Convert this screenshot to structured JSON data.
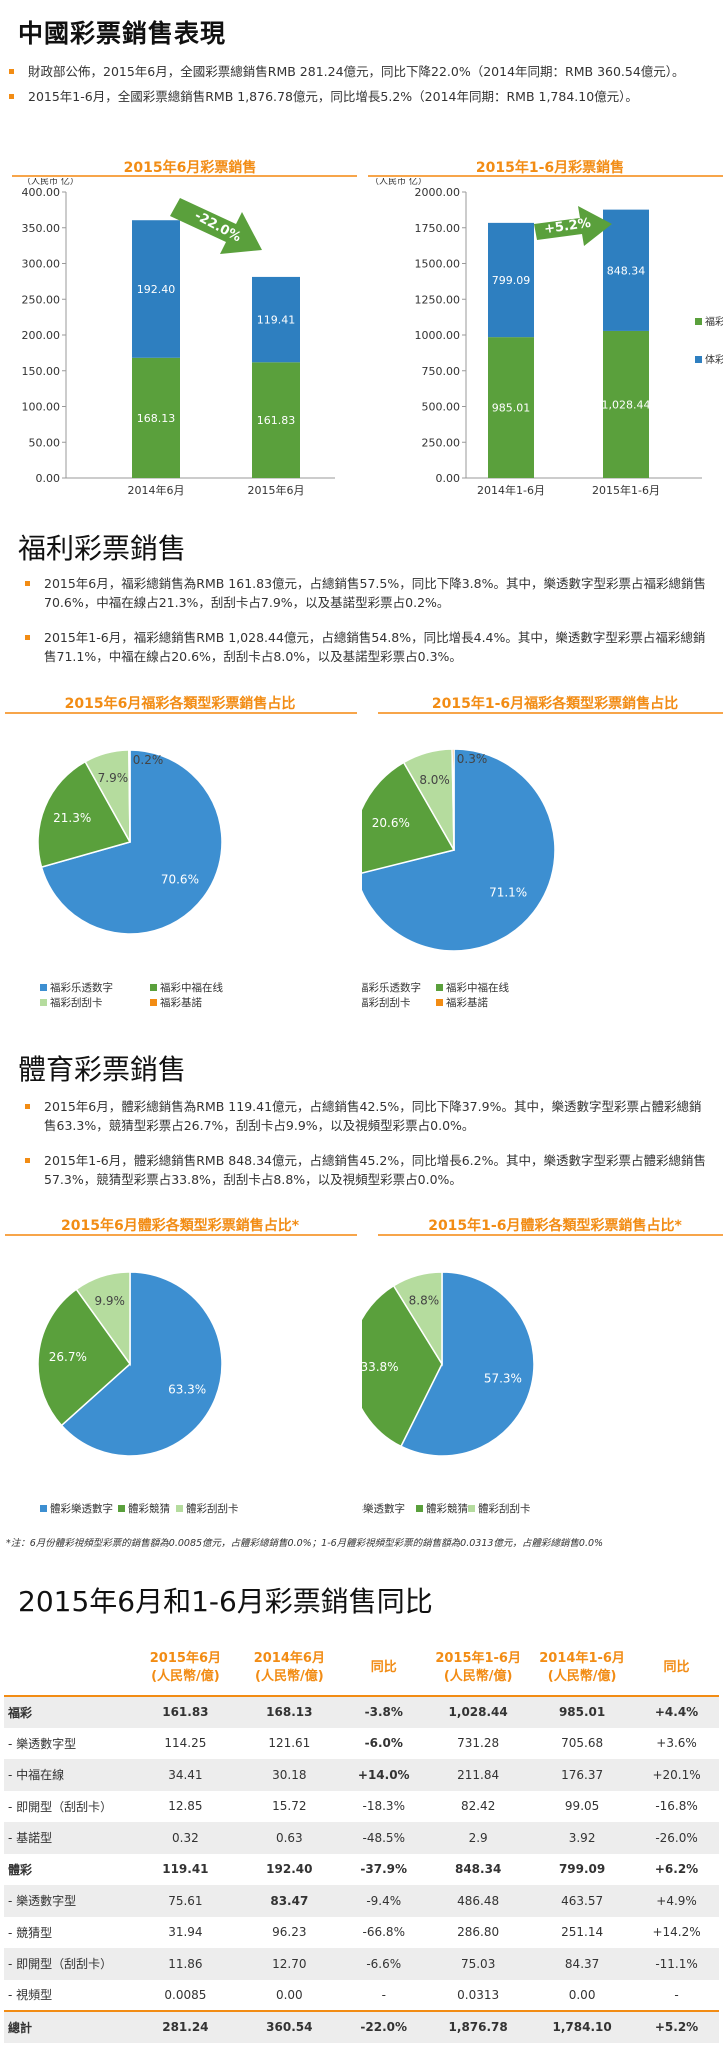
{
  "section1": {
    "title": "中國彩票銷售表現",
    "bullets": [
      "財政部公佈，2015年6月，全國彩票總銷售RMB 281.24億元，同比下降22.0%（2014年同期：RMB 360.54億元）。",
      "2015年1-6月，全國彩票總銷售RMB 1,876.78億元，同比增長5.2%（2014年同期：RMB 1,784.10億元）。"
    ]
  },
  "section2": {
    "title": "福利彩票銷售",
    "bullets": [
      "2015年6月，福彩總銷售為RMB 161.83億元，占總銷售57.5%，同比下降3.8%。其中，樂透數字型彩票占福彩總銷售70.6%，中福在線占21.3%，刮刮卡占7.9%，以及基諾型彩票占0.2%。",
      "2015年1-6月，福彩總銷售RMB 1,028.44億元，占總銷售54.8%，同比增長4.4%。其中，樂透數字型彩票占福彩總銷售71.1%，中福在線占20.6%，刮刮卡占8.0%，以及基諾型彩票占0.3%。"
    ]
  },
  "section3": {
    "title": "體育彩票銷售",
    "bullets": [
      "2015年6月，體彩總銷售為RMB 119.41億元，占總銷售42.5%，同比下降37.9%。其中，樂透數字型彩票占體彩總銷售63.3%，競猜型彩票占26.7%，刮刮卡占9.9%，以及視頻型彩票占0.0%。",
      "2015年1-6月，體彩總銷售RMB 848.34億元，占總銷售45.2%，同比增長6.2%。其中，樂透數字型彩票占體彩總銷售57.3%，競猜型彩票占33.8%，刮刮卡占8.8%，以及視頻型彩票占0.0%。"
    ],
    "note": "*注：6月份體彩視頻型彩票的銷售額為0.0085億元，占體彩總銷售0.0%；1-6月體彩視頻型彩票的銷售額為0.0313億元，占體彩總銷售0.0%"
  },
  "section4": {
    "title": "2015年6月和1-6月彩票銷售同比"
  },
  "colors": {
    "fucai": "#5aa03c",
    "ticai": "#2e7fc0",
    "light_green": "#b5dc9e",
    "orange": "#f28c14",
    "blue": "#3d8fd1"
  },
  "chart_data": [
    {
      "type": "bar",
      "stacked": true,
      "title": "2015年6月彩票銷售",
      "ylabel": "（人民币 亿）",
      "categories": [
        "2014年6月",
        "2015年6月"
      ],
      "series": [
        {
          "name": "福彩",
          "values": [
            168.13,
            161.83
          ]
        },
        {
          "name": "体彩",
          "values": [
            192.4,
            119.41
          ]
        }
      ],
      "ylim": [
        0,
        400
      ],
      "yticks": [
        "0.00",
        "50.00",
        "100.00",
        "150.00",
        "200.00",
        "250.00",
        "300.00",
        "350.00",
        "400.00"
      ],
      "data_labels": [
        [
          "168.13",
          "161.83"
        ],
        [
          "192.40",
          "119.41"
        ]
      ],
      "annotation": "-22.0%",
      "grid": false
    },
    {
      "type": "bar",
      "stacked": true,
      "title": "2015年1-6月彩票銷售",
      "ylabel": "（人民币 亿）",
      "categories": [
        "2014年1-6月",
        "2015年1-6月"
      ],
      "series": [
        {
          "name": "福彩",
          "values": [
            985.01,
            1028.44
          ]
        },
        {
          "name": "体彩",
          "values": [
            799.09,
            848.34
          ]
        }
      ],
      "ylim": [
        0,
        2000
      ],
      "yticks": [
        "0.00",
        "250.00",
        "500.00",
        "750.00",
        "1000.00",
        "1250.00",
        "1500.00",
        "1750.00",
        "2000.00"
      ],
      "data_labels": [
        [
          "985.01",
          "1,028.44"
        ],
        [
          "799.09",
          "848.34"
        ]
      ],
      "annotation": "+5.2%",
      "legend": [
        "福彩",
        "体彩"
      ],
      "legend_position": "right",
      "grid": false
    },
    {
      "type": "pie",
      "title": "2015年6月福彩各類型彩票銷售占比",
      "labels": [
        "福彩乐透数字",
        "福彩中福在线",
        "福彩刮刮卡",
        "福彩基諾"
      ],
      "values": [
        70.6,
        21.3,
        7.9,
        0.2
      ],
      "value_labels": [
        "70.6%",
        "21.3%",
        "7.9%",
        "0.2%"
      ],
      "colors": [
        "#3d8fd1",
        "#5aa03c",
        "#b5dc9e",
        "#f28c14"
      ],
      "legend_position": "bottom"
    },
    {
      "type": "pie",
      "title": "2015年1-6月福彩各類型彩票銷售占比",
      "labels": [
        "福彩乐透数字",
        "福彩中福在线",
        "福彩刮刮卡",
        "福彩基諾"
      ],
      "values": [
        71.1,
        20.6,
        8.0,
        0.3
      ],
      "value_labels": [
        "71.1%",
        "20.6%",
        "8.0%",
        "0.3%"
      ],
      "colors": [
        "#3d8fd1",
        "#5aa03c",
        "#b5dc9e",
        "#f28c14"
      ],
      "legend_position": "bottom"
    },
    {
      "type": "pie",
      "title": "2015年6月體彩各類型彩票銷售占比*",
      "labels": [
        "體彩樂透數字",
        "體彩競猜",
        "體彩刮刮卡"
      ],
      "values": [
        63.3,
        26.7,
        9.9
      ],
      "value_labels": [
        "63.3%",
        "26.7%",
        "9.9%"
      ],
      "colors": [
        "#3d8fd1",
        "#5aa03c",
        "#b5dc9e"
      ],
      "legend_position": "bottom"
    },
    {
      "type": "pie",
      "title": "2015年1-6月體彩各類型彩票銷售占比*",
      "labels": [
        "體彩樂透數字",
        "體彩競猜",
        "體彩刮刮卡"
      ],
      "values": [
        57.3,
        33.8,
        8.8
      ],
      "value_labels": [
        "57.3%",
        "33.8%",
        "8.8%"
      ],
      "colors": [
        "#3d8fd1",
        "#5aa03c",
        "#b5dc9e"
      ],
      "legend_position": "bottom"
    },
    {
      "type": "table",
      "headers": [
        "",
        "2015年6月\n(人民幣/億)",
        "2014年6月\n(人民幣/億)",
        "同比",
        "2015年1-6月\n(人民幣/億)",
        "2014年1-6月\n(人民幣/億)",
        "同比"
      ],
      "rows": [
        [
          "福彩",
          "161.83",
          "168.13",
          "-3.8%",
          "1,028.44",
          "985.01",
          "+4.4%"
        ],
        [
          "- 樂透數字型",
          "114.25",
          "121.61",
          "-6.0%",
          "731.28",
          "705.68",
          "+3.6%"
        ],
        [
          "- 中福在線",
          "34.41",
          "30.18",
          "+14.0%",
          "211.84",
          "176.37",
          "+20.1%"
        ],
        [
          "- 即開型（刮刮卡）",
          "12.85",
          "15.72",
          "-18.3%",
          "82.42",
          "99.05",
          "-16.8%"
        ],
        [
          "- 基諾型",
          "0.32",
          "0.63",
          "-48.5%",
          "2.9",
          "3.92",
          "-26.0%"
        ],
        [
          "體彩",
          "119.41",
          "192.40",
          "-37.9%",
          "848.34",
          "799.09",
          "+6.2%"
        ],
        [
          "- 樂透數字型",
          "75.61",
          "83.47",
          "-9.4%",
          "486.48",
          "463.57",
          "+4.9%"
        ],
        [
          "- 競猜型",
          "31.94",
          "96.23",
          "-66.8%",
          "286.80",
          "251.14",
          "+14.2%"
        ],
        [
          "- 即開型（刮刮卡）",
          "11.86",
          "12.70",
          "-6.6%",
          "75.03",
          "84.37",
          "-11.1%"
        ],
        [
          "- 視頻型",
          "0.0085",
          "0.00",
          "-",
          "0.0313",
          "0.00",
          "-"
        ],
        [
          "總計",
          "281.24",
          "360.54",
          "-22.0%",
          "1,876.78",
          "1,784.10",
          "+5.2%"
        ]
      ]
    }
  ]
}
